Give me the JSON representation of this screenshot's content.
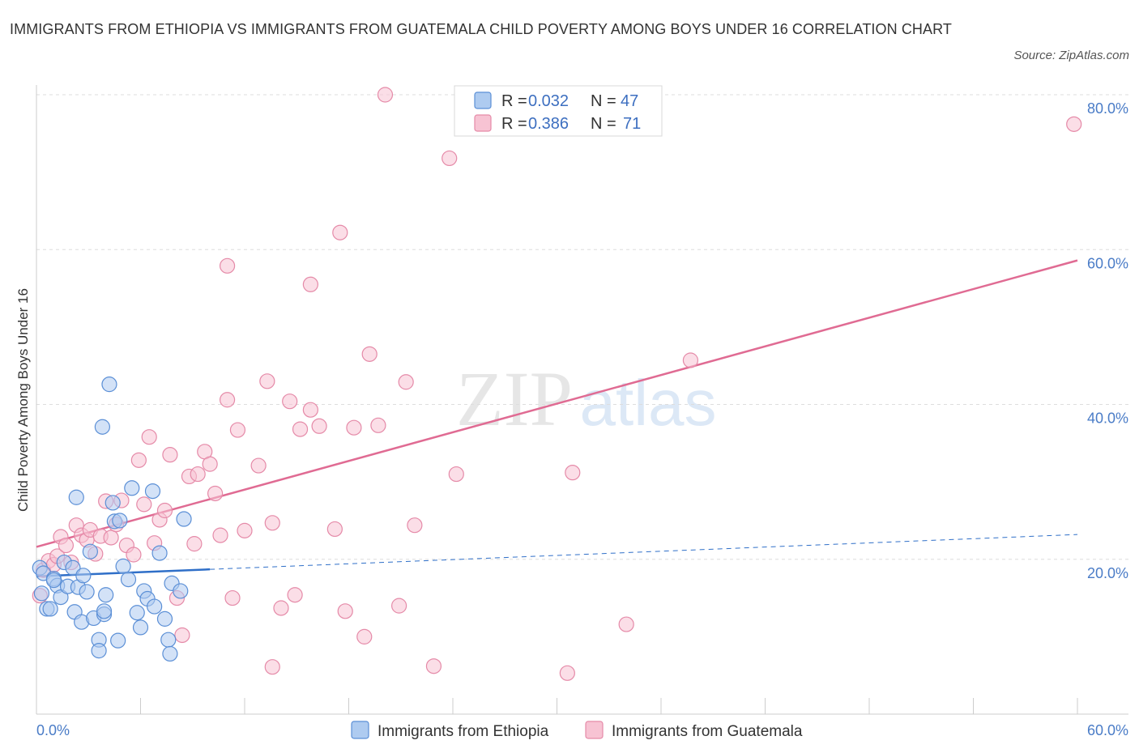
{
  "title": "IMMIGRANTS FROM ETHIOPIA VS IMMIGRANTS FROM GUATEMALA CHILD POVERTY AMONG BOYS UNDER 16 CORRELATION CHART",
  "source": "Source: ZipAtlas.com",
  "watermark": {
    "zip": "ZIP",
    "atlas": "atlas"
  },
  "colors": {
    "ethiopia_fill": "#aecbf0",
    "ethiopia_stroke": "#5b8fd6",
    "ethiopia_line": "#2f6fc8",
    "guatemala_fill": "#f7c3d3",
    "guatemala_stroke": "#e58aa8",
    "guatemala_line": "#e06b93",
    "tick_label": "#4a7cc7",
    "grid": "#dddddd"
  },
  "chart_data": {
    "type": "scatter",
    "xlabel": "",
    "ylabel": "Child Poverty Among Boys Under 16",
    "xlim": [
      0,
      60
    ],
    "ylim": [
      0,
      80
    ],
    "y_ticks": [
      {
        "value": 20,
        "label": "20.0%"
      },
      {
        "value": 40,
        "label": "40.0%"
      },
      {
        "value": 60,
        "label": "60.0%"
      },
      {
        "value": 80,
        "label": "80.0%"
      }
    ],
    "x_tick_labels": {
      "min": "0.0%",
      "max": "60.0%"
    },
    "grid": true,
    "legend_position": "top-center",
    "legend": [
      {
        "r_label": "R =",
        "r_value": "0.032",
        "n_label": "N =",
        "n_value": "47"
      },
      {
        "r_label": "R =",
        "r_value": "0.386",
        "n_label": "N =",
        "n_value": "71"
      }
    ],
    "series": [
      {
        "name": "Immigrants from Ethiopia",
        "trend": {
          "x0": 0,
          "y0": 17.8,
          "x1": 10,
          "y1": 18.7,
          "dashed_x1": 60,
          "dashed_y1": 23.2
        },
        "points": [
          [
            0.2,
            18.9
          ],
          [
            0.4,
            18.2
          ],
          [
            0.3,
            15.6
          ],
          [
            0.6,
            13.6
          ],
          [
            0.8,
            13.6
          ],
          [
            1.0,
            17.5
          ],
          [
            1.2,
            16.6
          ],
          [
            1.4,
            15.1
          ],
          [
            1.6,
            19.6
          ],
          [
            1.8,
            16.5
          ],
          [
            2.1,
            18.9
          ],
          [
            2.2,
            13.2
          ],
          [
            2.3,
            28.0
          ],
          [
            2.4,
            16.4
          ],
          [
            2.6,
            11.9
          ],
          [
            2.7,
            17.9
          ],
          [
            2.9,
            15.8
          ],
          [
            3.1,
            21.0
          ],
          [
            3.3,
            12.4
          ],
          [
            3.6,
            9.6
          ],
          [
            3.9,
            12.9
          ],
          [
            4.0,
            15.4
          ],
          [
            4.2,
            42.6
          ],
          [
            4.4,
            27.3
          ],
          [
            3.6,
            8.2
          ],
          [
            3.8,
            37.1
          ],
          [
            4.5,
            24.9
          ],
          [
            4.7,
            9.5
          ],
          [
            5.0,
            19.1
          ],
          [
            5.3,
            17.4
          ],
          [
            5.5,
            29.2
          ],
          [
            5.8,
            13.1
          ],
          [
            6.0,
            11.2
          ],
          [
            6.2,
            15.9
          ],
          [
            6.4,
            14.9
          ],
          [
            6.7,
            28.8
          ],
          [
            6.8,
            13.9
          ],
          [
            7.1,
            20.8
          ],
          [
            7.4,
            12.3
          ],
          [
            7.6,
            9.6
          ],
          [
            7.7,
            7.8
          ],
          [
            7.8,
            16.9
          ],
          [
            8.3,
            15.9
          ],
          [
            8.5,
            25.2
          ],
          [
            3.9,
            13.3
          ],
          [
            4.8,
            25.0
          ],
          [
            1.0,
            17.3
          ]
        ]
      },
      {
        "name": "Immigrants from Guatemala",
        "trend": {
          "x0": 0,
          "y0": 21.6,
          "x1": 60,
          "y1": 58.6
        },
        "points": [
          [
            0.2,
            15.3
          ],
          [
            0.4,
            18.6
          ],
          [
            0.7,
            19.8
          ],
          [
            1.0,
            19.3
          ],
          [
            1.2,
            20.4
          ],
          [
            1.4,
            22.9
          ],
          [
            1.7,
            21.8
          ],
          [
            2.0,
            19.6
          ],
          [
            2.3,
            24.4
          ],
          [
            2.6,
            23.1
          ],
          [
            2.9,
            22.5
          ],
          [
            3.1,
            23.8
          ],
          [
            3.4,
            20.7
          ],
          [
            3.7,
            23.0
          ],
          [
            4.0,
            27.5
          ],
          [
            4.3,
            22.8
          ],
          [
            4.6,
            24.5
          ],
          [
            4.9,
            27.6
          ],
          [
            5.2,
            21.8
          ],
          [
            5.6,
            20.6
          ],
          [
            5.9,
            32.8
          ],
          [
            6.2,
            27.1
          ],
          [
            6.5,
            35.8
          ],
          [
            6.8,
            22.1
          ],
          [
            7.1,
            25.1
          ],
          [
            7.4,
            26.3
          ],
          [
            7.7,
            33.5
          ],
          [
            8.1,
            15.0
          ],
          [
            8.4,
            10.2
          ],
          [
            8.8,
            30.7
          ],
          [
            9.1,
            22.0
          ],
          [
            9.3,
            31.0
          ],
          [
            9.7,
            33.9
          ],
          [
            10.0,
            32.3
          ],
          [
            10.3,
            28.5
          ],
          [
            10.6,
            23.1
          ],
          [
            11.0,
            40.6
          ],
          [
            11.3,
            15.0
          ],
          [
            11.6,
            36.7
          ],
          [
            11.0,
            57.9
          ],
          [
            12.0,
            23.7
          ],
          [
            12.8,
            32.1
          ],
          [
            13.3,
            43.0
          ],
          [
            13.6,
            24.7
          ],
          [
            14.1,
            13.7
          ],
          [
            14.6,
            40.4
          ],
          [
            14.9,
            15.4
          ],
          [
            15.2,
            36.8
          ],
          [
            15.8,
            55.5
          ],
          [
            15.8,
            39.3
          ],
          [
            16.3,
            37.2
          ],
          [
            17.2,
            23.9
          ],
          [
            17.5,
            62.2
          ],
          [
            17.8,
            13.3
          ],
          [
            18.3,
            37.0
          ],
          [
            18.9,
            10.0
          ],
          [
            19.2,
            46.5
          ],
          [
            19.7,
            37.3
          ],
          [
            20.1,
            80.0
          ],
          [
            20.9,
            14.0
          ],
          [
            21.3,
            42.9
          ],
          [
            21.8,
            24.4
          ],
          [
            13.6,
            6.1
          ],
          [
            22.9,
            6.2
          ],
          [
            23.8,
            71.8
          ],
          [
            24.2,
            31.0
          ],
          [
            30.6,
            5.3
          ],
          [
            30.9,
            31.2
          ],
          [
            34.0,
            11.6
          ],
          [
            37.7,
            45.7
          ],
          [
            59.8,
            76.2
          ]
        ]
      }
    ]
  },
  "bottom_legend": [
    "Immigrants from Ethiopia",
    "Immigrants from Guatemala"
  ]
}
